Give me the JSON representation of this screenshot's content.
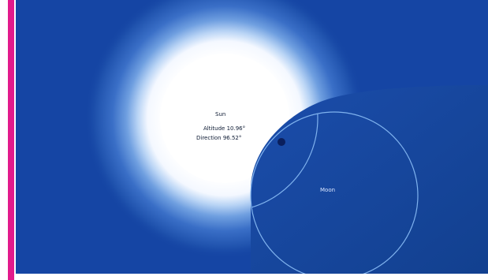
{
  "colors": {
    "sky": "#1545a4",
    "sky_dark": "#11398a",
    "sun_core": "#ffffff",
    "sun_glow": "#d8e8fa",
    "moon_fill": "#1a4aa9",
    "moon_outline": "#7fb2ee",
    "sun_marker": "#0a1f5c",
    "accent_border": "#e21b8c"
  },
  "sun": {
    "name": "Sun",
    "altitude_text": "Altitude 10.96°",
    "direction_text": "Direction 96.52°"
  },
  "moon": {
    "name": "Moon"
  }
}
